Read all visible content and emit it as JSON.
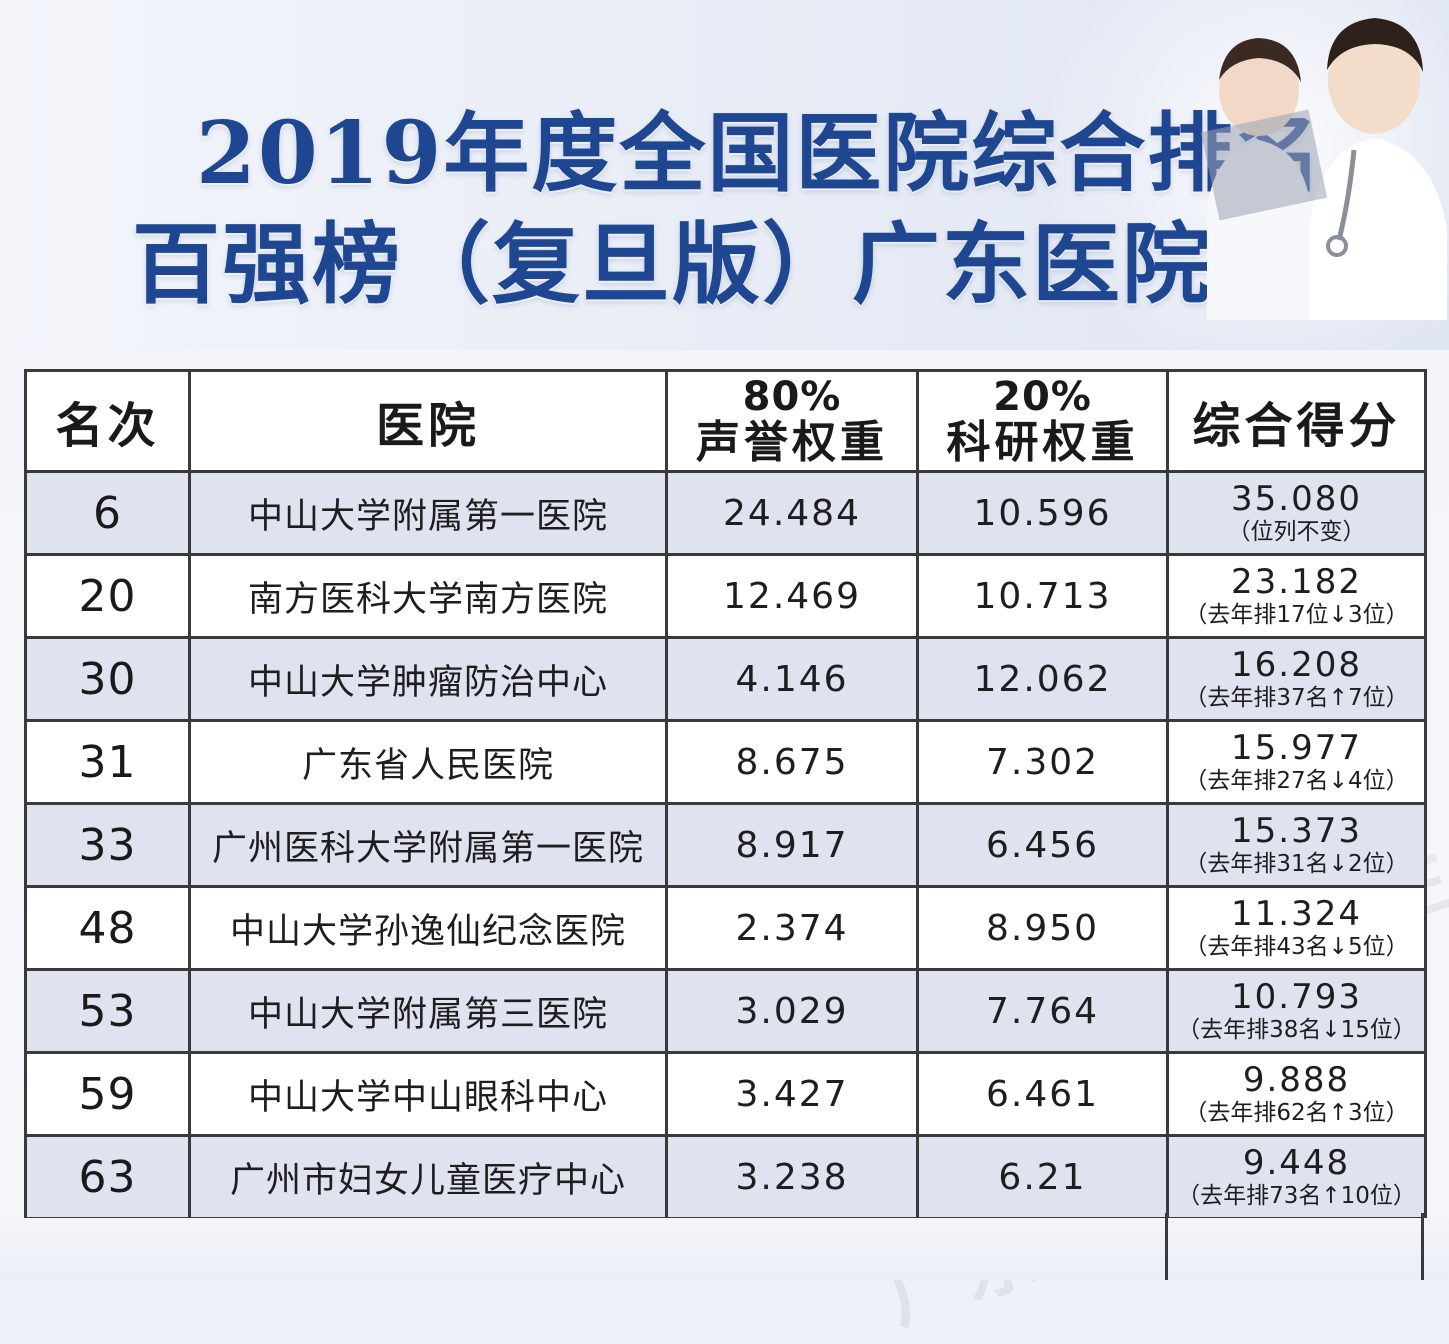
{
  "title": {
    "line1": "2019年度全国医院综合排名",
    "line2": "百强榜（复旦版）广东医院名单"
  },
  "table": {
    "headers": {
      "rank": "名次",
      "hospital": "医院",
      "reputation_pct": "80%",
      "reputation_label": "声誉权重",
      "research_pct": "20%",
      "research_label": "科研权重",
      "score": "综合得分"
    },
    "rows": [
      {
        "rank": "6",
        "hospital": "中山大学附属第一医院",
        "reputation": "24.484",
        "research": "10.596",
        "score": "35.080",
        "note": "（位列不变）"
      },
      {
        "rank": "20",
        "hospital": "南方医科大学南方医院",
        "reputation": "12.469",
        "research": "10.713",
        "score": "23.182",
        "note": "（去年排17位↓3位）"
      },
      {
        "rank": "30",
        "hospital": "中山大学肿瘤防治中心",
        "reputation": "4.146",
        "research": "12.062",
        "score": "16.208",
        "note": "（去年排37名↑7位）"
      },
      {
        "rank": "31",
        "hospital": "广东省人民医院",
        "reputation": "8.675",
        "research": "7.302",
        "score": "15.977",
        "note": "（去年排27名↓4位）"
      },
      {
        "rank": "33",
        "hospital": "广州医科大学附属第一医院",
        "reputation": "8.917",
        "research": "6.456",
        "score": "15.373",
        "note": "（去年排31名↓2位）"
      },
      {
        "rank": "48",
        "hospital": "中山大学孙逸仙纪念医院",
        "reputation": "2.374",
        "research": "8.950",
        "score": "11.324",
        "note": "（去年排43名↓5位）"
      },
      {
        "rank": "53",
        "hospital": "中山大学附属第三医院",
        "reputation": "3.029",
        "research": "7.764",
        "score": "10.793",
        "note": "（去年排38名↓15位）"
      },
      {
        "rank": "59",
        "hospital": "中山大学中山眼科中心",
        "reputation": "3.427",
        "research": "6.461",
        "score": "9.888",
        "note": "（去年排62名↑3位）"
      },
      {
        "rank": "63",
        "hospital": "广州市妇女儿童医疗中心",
        "reputation": "3.238",
        "research": "6.21",
        "score": "9.448",
        "note": "（去年排73名↑10位）"
      }
    ]
  },
  "watermark": {
    "brand": "广东卫生",
    "sub": "GUANGDONG HEALTH ONLINE"
  }
}
